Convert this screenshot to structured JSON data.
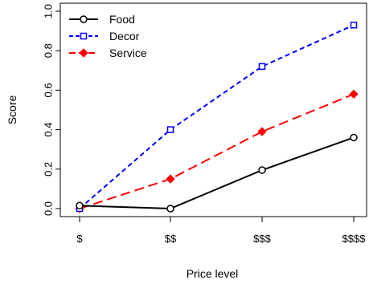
{
  "chart_data": {
    "type": "line",
    "categories": [
      "$",
      "$$",
      "$$$",
      "$$$$"
    ],
    "xlabel": "Price level",
    "ylabel": "Score",
    "ylim": [
      0.0,
      1.0
    ],
    "yticks": [
      "0.0",
      "0.2",
      "0.4",
      "0.6",
      "0.8",
      "1.0"
    ],
    "grid": false,
    "legend_position": "top-left",
    "series": [
      {
        "name": "Food",
        "values": [
          0.015,
          0.0,
          0.195,
          0.36
        ],
        "color": "#000000",
        "line": "solid",
        "marker": "open-circle"
      },
      {
        "name": "Decor",
        "values": [
          0.0,
          0.4,
          0.72,
          0.93
        ],
        "color": "#0000ff",
        "line": "dashed",
        "marker": "open-square"
      },
      {
        "name": "Service",
        "values": [
          0.0,
          0.15,
          0.39,
          0.58
        ],
        "color": "#ff0000",
        "line": "longdash",
        "marker": "filled-diamond"
      }
    ]
  }
}
